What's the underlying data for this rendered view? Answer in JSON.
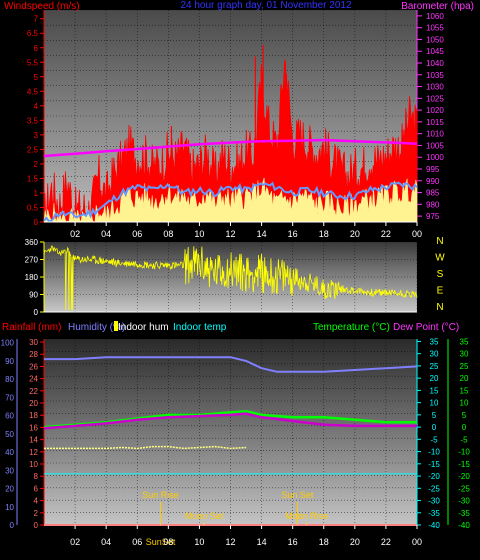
{
  "chart_data": [
    {
      "type": "area",
      "title": "24 hour graph day, 01 November 2012",
      "left_axis_label": "Windspeed (m/s)",
      "right_axis_label": "Barometer (hpa)",
      "x_ticks": [
        "02",
        "04",
        "06",
        "08",
        "10",
        "12",
        "14",
        "16",
        "18",
        "20",
        "22",
        "00"
      ],
      "left_ticks": [
        "0",
        "0.5",
        "1",
        "1.5",
        "2",
        "2.5",
        "3",
        "3.5",
        "4",
        "4.5",
        "5",
        "5.5",
        "6",
        "6.5",
        "7"
      ],
      "right_ticks": [
        "975",
        "980",
        "985",
        "990",
        "995",
        "1000",
        "1005",
        "1010",
        "1015",
        "1020",
        "1025",
        "1030",
        "1035",
        "1040",
        "1045",
        "1050",
        "1055",
        "1060"
      ],
      "ylim_left": [
        0,
        7.3
      ],
      "ylim_right": [
        972.5,
        1062.5
      ],
      "series": [
        {
          "name": "Windspeed",
          "color": "#ff0000",
          "x": [
            0,
            0.5,
            1,
            1.5,
            2,
            2.5,
            3,
            3.5,
            4,
            4.5,
            5,
            5.5,
            6,
            6.5,
            7,
            7.5,
            8,
            8.5,
            9,
            9.5,
            10,
            10.5,
            11,
            11.5,
            12,
            12.5,
            13,
            13.5,
            14,
            14.5,
            15,
            15.5,
            16,
            16.5,
            17,
            17.5,
            18,
            18.5,
            19,
            19.5,
            20,
            20.5,
            21,
            21.5,
            22,
            22.5,
            23,
            23.5,
            24
          ],
          "values": [
            0.2,
            1.2,
            0.6,
            1.4,
            0.4,
            0.5,
            0.4,
            1.6,
            0.9,
            1.7,
            2.1,
            2.6,
            2.2,
            2.3,
            1.9,
            2.0,
            2.4,
            2.2,
            2.6,
            1.8,
            2.0,
            2.4,
            1.6,
            2.3,
            2.0,
            2.0,
            2.4,
            2.3,
            4.9,
            3.2,
            2.6,
            5.7,
            2.8,
            3.0,
            2.7,
            2.4,
            2.6,
            2.2,
            1.8,
            1.6,
            1.8,
            1.9,
            2.2,
            2.1,
            2.3,
            2.6,
            2.6,
            3.6,
            3.3
          ]
        },
        {
          "name": "Wind gust",
          "color": "#ffff99",
          "x": [
            0,
            0.5,
            1,
            1.5,
            2,
            2.5,
            3,
            3.5,
            4,
            4.5,
            5,
            5.5,
            6,
            6.5,
            7,
            7.5,
            8,
            8.5,
            9,
            9.5,
            10,
            10.5,
            11,
            11.5,
            12,
            12.5,
            13,
            13.5,
            14,
            14.5,
            15,
            15.5,
            16,
            16.5,
            17,
            17.5,
            18,
            18.5,
            19,
            19.5,
            20,
            20.5,
            21,
            21.5,
            22,
            22.5,
            23,
            23.5,
            24
          ],
          "values": [
            0,
            0.3,
            0,
            0.2,
            0,
            0,
            0,
            0.4,
            0.2,
            0.5,
            0.7,
            0.9,
            0.8,
            0.9,
            0.7,
            0.8,
            1.0,
            0.8,
            0.9,
            0.6,
            0.8,
            1.0,
            0.6,
            0.9,
            0.7,
            0.8,
            0.9,
            0.9,
            1.2,
            0.9,
            0.6,
            0.8,
            0.7,
            0.9,
            0.8,
            0.6,
            0.7,
            0.6,
            0.5,
            0.5,
            0.6,
            0.7,
            0.8,
            0.8,
            0.9,
            1.0,
            1.0,
            1.1,
            1.0
          ]
        },
        {
          "name": "Wind average",
          "color": "#6699ff",
          "x": [
            0,
            1,
            2,
            3,
            4,
            5,
            6,
            7,
            8,
            9,
            10,
            11,
            12,
            13,
            14,
            15,
            16,
            17,
            18,
            19,
            20,
            21,
            22,
            23,
            24
          ],
          "values": [
            0,
            0.3,
            0.2,
            0.3,
            0.6,
            1.0,
            1.2,
            1.1,
            1.3,
            1.0,
            1.1,
            1.0,
            1.2,
            1.1,
            1.3,
            1.2,
            1.0,
            1.1,
            1.0,
            0.9,
            0.9,
            1.1,
            1.2,
            1.3,
            1.2
          ]
        },
        {
          "name": "Barometer",
          "color": "#ff00ff",
          "axis": "right",
          "x": [
            0,
            2,
            4,
            6,
            8,
            10,
            12,
            14,
            16,
            18,
            20,
            22,
            24
          ],
          "values": [
            1000.5,
            1001.5,
            1002.5,
            1003.5,
            1004.5,
            1005.5,
            1006.2,
            1006.8,
            1007,
            1007.3,
            1006.8,
            1006.3,
            1005.7
          ]
        }
      ]
    },
    {
      "type": "line",
      "right_labels": [
        "N",
        "W",
        "S",
        "E",
        "N"
      ],
      "left_ticks": [
        "0",
        "90",
        "180",
        "270",
        "360"
      ],
      "x_ticks": [
        "02",
        "04",
        "06",
        "08",
        "10",
        "12",
        "14",
        "16",
        "18",
        "20",
        "22",
        "00"
      ],
      "ylim": [
        0,
        360
      ],
      "series": [
        {
          "name": "Wind direction",
          "color": "#ffff00",
          "x": [
            0,
            0.5,
            1,
            1.5,
            2,
            3,
            4,
            5,
            6,
            7,
            8,
            9,
            10,
            11,
            12,
            13,
            14,
            15,
            16,
            17,
            18,
            19,
            20,
            21,
            22,
            23,
            24
          ],
          "values": [
            300,
            330,
            300,
            320,
            270,
            270,
            260,
            250,
            250,
            240,
            240,
            240,
            250,
            200,
            220,
            200,
            200,
            180,
            180,
            150,
            120,
            120,
            110,
            100,
            100,
            95,
            90
          ]
        }
      ]
    },
    {
      "type": "line",
      "legend": [
        "Rainfall (mm)",
        "Humidity (%)",
        "Indoor hum",
        "Indoor temp",
        "Temperature (°C)",
        "Dew Point (°C)"
      ],
      "x_ticks": [
        "02",
        "04",
        "06",
        "08",
        "10",
        "12",
        "14",
        "16",
        "18",
        "20",
        "22",
        "00"
      ],
      "left_ticks_humidity": [
        "0",
        "10",
        "20",
        "30",
        "40",
        "50",
        "60",
        "70",
        "80",
        "90",
        "100"
      ],
      "left_ticks_rain": [
        "0",
        "2",
        "4",
        "6",
        "8",
        "10",
        "12",
        "14",
        "16",
        "18",
        "20",
        "22",
        "24",
        "26",
        "28",
        "30"
      ],
      "right_ticks_temp": [
        "-40",
        "-35",
        "-30",
        "-25",
        "-20",
        "-15",
        "-10",
        "-5",
        "0",
        "5",
        "10",
        "15",
        "20",
        "25",
        "30",
        "35"
      ],
      "ylim_humidity": [
        0,
        102
      ],
      "ylim_temp": [
        -40,
        36
      ],
      "annotations": [
        {
          "label": "Sun Rise",
          "hour": 7.5,
          "row": "upper"
        },
        {
          "label": "Sun Set",
          "hour": 16.3,
          "row": "upper"
        },
        {
          "label": "Moon Set",
          "hour": 10.3,
          "row": "middle"
        },
        {
          "label": "Moon Rise",
          "hour": 16.9,
          "row": "middle"
        },
        {
          "label": "SunSet",
          "hour": 7.5,
          "row": "bottom"
        }
      ],
      "series": [
        {
          "name": "Humidity",
          "color": "#8080ff",
          "x": [
            0,
            2,
            4,
            6,
            8,
            10,
            12,
            13,
            14,
            15,
            16,
            18,
            20,
            22,
            24
          ],
          "values": [
            91,
            91,
            92,
            92,
            92,
            92,
            92,
            90,
            86,
            84,
            84,
            84,
            85,
            86,
            87
          ]
        },
        {
          "name": "Indoor temp",
          "color": "#00ffff",
          "x": [
            0,
            24
          ],
          "values": [
            28,
            28
          ]
        },
        {
          "name": "Temperature",
          "color": "#00ff00",
          "x": [
            0,
            2,
            4,
            6,
            8,
            10,
            12,
            13,
            14,
            16,
            18,
            20,
            22,
            24
          ],
          "values": [
            0,
            1,
            2,
            3.5,
            5,
            5,
            6,
            6.5,
            5,
            4,
            4,
            3,
            2,
            2
          ]
        },
        {
          "name": "Dew Point",
          "color": "#cc00cc",
          "x": [
            0,
            2,
            4,
            6,
            8,
            10,
            12,
            13,
            14,
            16,
            18,
            20,
            22,
            24
          ],
          "values": [
            -0.5,
            0.5,
            1.5,
            3,
            4,
            4.5,
            5,
            5.5,
            4,
            2.5,
            1,
            0.5,
            0.5,
            0.5
          ]
        },
        {
          "name": "Indoor hum",
          "color": "#ffff80",
          "x": [
            0,
            2,
            4,
            5,
            6,
            7,
            8,
            9,
            10,
            11,
            12,
            13
          ],
          "values": [
            42,
            42,
            42,
            42.5,
            42,
            43,
            43,
            42,
            42.5,
            43,
            42,
            42.5
          ]
        },
        {
          "name": "Rainfall",
          "color": "#ff0000",
          "x": [
            0,
            24
          ],
          "values": [
            0,
            0
          ]
        }
      ]
    }
  ]
}
